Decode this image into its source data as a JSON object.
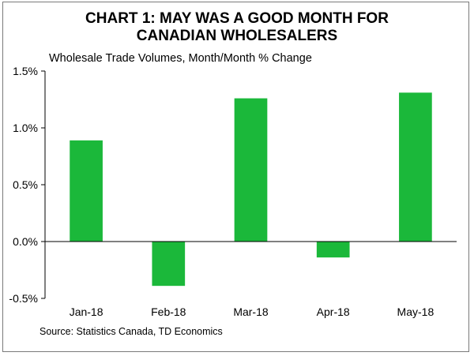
{
  "title_line1": "CHART 1: MAY WAS A GOOD MONTH FOR",
  "title_line2": "CANADIAN WHOLESALERS",
  "subtitle": "Wholesale Trade Volumes, Month/Month % Change",
  "source": "Source: Statistics Canada, TD Economics",
  "colors": {
    "bar": "#1bb83a",
    "axis": "#000000"
  },
  "chart_data": {
    "type": "bar",
    "title": "CHART 1: MAY WAS A GOOD MONTH FOR CANADIAN WHOLESALERS",
    "ylabel": "Wholesale Trade Volumes, Month/Month % Change",
    "xlabel": "",
    "categories": [
      "Jan-18",
      "Feb-18",
      "Mar-18",
      "Apr-18",
      "May-18"
    ],
    "values": [
      0.89,
      -0.39,
      1.26,
      -0.14,
      1.31
    ],
    "ylim": [
      -0.5,
      1.5
    ],
    "yticks": [
      1.5,
      1.0,
      0.5,
      0.0,
      -0.5
    ],
    "ytick_labels": [
      "1.5%",
      "1.0%",
      "0.5%",
      "0.0%",
      "-0.5%"
    ],
    "grid": false,
    "legend": "none"
  }
}
